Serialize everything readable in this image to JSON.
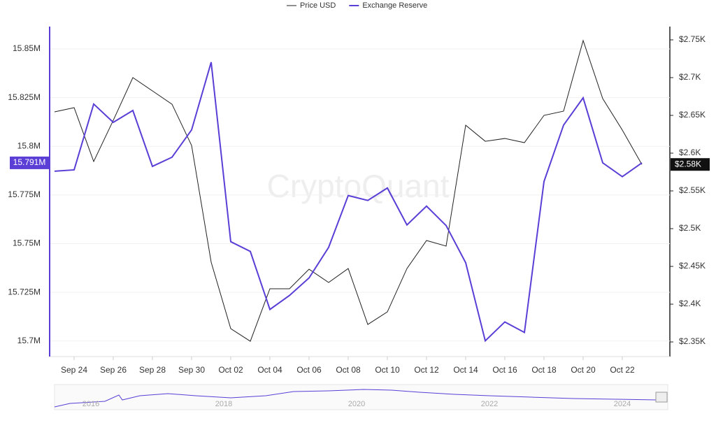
{
  "chart_data": {
    "type": "line",
    "watermark": "CryptoQuant",
    "categories": [
      null,
      "Sep 24",
      null,
      "Sep 26",
      null,
      "Sep 28",
      null,
      "Sep 30",
      null,
      "Oct 02",
      null,
      "Oct 04",
      null,
      "Oct 06",
      null,
      "Oct 08",
      null,
      "Oct 10",
      null,
      "Oct 12",
      null,
      "Oct 14",
      null,
      "Oct 16",
      null,
      "Oct 18",
      null,
      "Oct 20",
      null,
      "Oct 22",
      null
    ],
    "series": [
      {
        "name": "Price USD",
        "color": "#222222",
        "axis": "y2",
        "last_label": "$2.58K",
        "values": [
          2654.6,
          2660.2,
          2588.9,
          2643.5,
          2700,
          2682.4,
          2664.8,
          2610.2,
          2455.6,
          2367.6,
          2350.9,
          2420.4,
          2420.4,
          2446.3,
          2428.7,
          2447.2,
          2373.1,
          2389.8,
          2447.2,
          2484.3,
          2476.9,
          2637,
          2615.7,
          2619.4,
          2613.9,
          2650,
          2655.6,
          2749.1,
          2672.2,
          2630.6,
          2585
        ]
      },
      {
        "name": "Exchange Reserve",
        "color": "#5a3ed6",
        "axis": "y",
        "last_label": "15.791M",
        "values": [
          15787200,
          15787900,
          15821700,
          15812300,
          15818400,
          15789700,
          15794400,
          15808400,
          15843200,
          15751000,
          15746000,
          15716200,
          15723400,
          15732400,
          15748100,
          15774700,
          15772200,
          15778600,
          15759600,
          15769300,
          15759300,
          15740200,
          15700100,
          15709800,
          15704400,
          15781900,
          15810900,
          15824900,
          15791500,
          15784400,
          15791500
        ]
      }
    ],
    "ylim": [
      15692000,
      15861500
    ],
    "yticks": [
      {
        "value": 15700000,
        "label": "15.7M"
      },
      {
        "value": 15725000,
        "label": "15.725M"
      },
      {
        "value": 15750000,
        "label": "15.75M"
      },
      {
        "value": 15775000,
        "label": "15.775M"
      },
      {
        "value": 15800000,
        "label": "15.8M"
      },
      {
        "value": 15825000,
        "label": "15.825M"
      },
      {
        "value": 15850000,
        "label": "15.85M"
      }
    ],
    "y2lim": [
      2330.6,
      2767.6
    ],
    "y2ticks": [
      {
        "value": 2350,
        "label": "$2.35K"
      },
      {
        "value": 2400,
        "label": "$2.4K"
      },
      {
        "value": 2450,
        "label": "$2.45K"
      },
      {
        "value": 2500,
        "label": "$2.5K"
      },
      {
        "value": 2550,
        "label": "$2.55K"
      },
      {
        "value": 2600,
        "label": "$2.6K"
      },
      {
        "value": 2650,
        "label": "$2.65K"
      },
      {
        "value": 2700,
        "label": "$2.7K"
      },
      {
        "value": 2750,
        "label": "$2.75K"
      }
    ],
    "grid": true,
    "navigator_labels": [
      "2016",
      "2018",
      "2020",
      "2022",
      "2024"
    ]
  }
}
